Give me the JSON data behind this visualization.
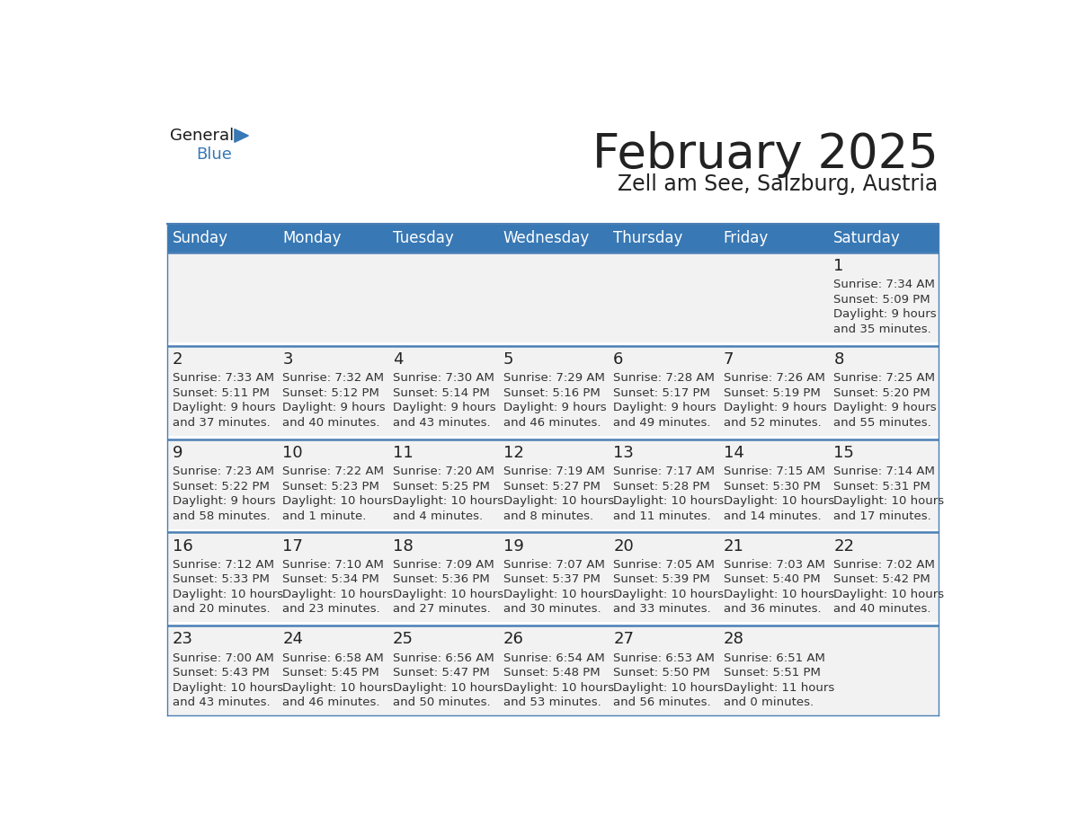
{
  "title": "February 2025",
  "subtitle": "Zell am See, Salzburg, Austria",
  "days_of_week": [
    "Sunday",
    "Monday",
    "Tuesday",
    "Wednesday",
    "Thursday",
    "Friday",
    "Saturday"
  ],
  "header_bg": "#3878b4",
  "header_text": "#ffffff",
  "cell_bg": "#f2f2f2",
  "cell_bg_white": "#ffffff",
  "divider_color": "#4a7fb5",
  "text_color": "#222222",
  "info_text_color": "#333333",
  "background": "#ffffff",
  "calendar_data": [
    [
      null,
      null,
      null,
      null,
      null,
      null,
      {
        "day": 1,
        "sunrise": "7:34 AM",
        "sunset": "5:09 PM",
        "daylight_l1": "Daylight: 9 hours",
        "daylight_l2": "and 35 minutes."
      }
    ],
    [
      {
        "day": 2,
        "sunrise": "7:33 AM",
        "sunset": "5:11 PM",
        "daylight_l1": "Daylight: 9 hours",
        "daylight_l2": "and 37 minutes."
      },
      {
        "day": 3,
        "sunrise": "7:32 AM",
        "sunset": "5:12 PM",
        "daylight_l1": "Daylight: 9 hours",
        "daylight_l2": "and 40 minutes."
      },
      {
        "day": 4,
        "sunrise": "7:30 AM",
        "sunset": "5:14 PM",
        "daylight_l1": "Daylight: 9 hours",
        "daylight_l2": "and 43 minutes."
      },
      {
        "day": 5,
        "sunrise": "7:29 AM",
        "sunset": "5:16 PM",
        "daylight_l1": "Daylight: 9 hours",
        "daylight_l2": "and 46 minutes."
      },
      {
        "day": 6,
        "sunrise": "7:28 AM",
        "sunset": "5:17 PM",
        "daylight_l1": "Daylight: 9 hours",
        "daylight_l2": "and 49 minutes."
      },
      {
        "day": 7,
        "sunrise": "7:26 AM",
        "sunset": "5:19 PM",
        "daylight_l1": "Daylight: 9 hours",
        "daylight_l2": "and 52 minutes."
      },
      {
        "day": 8,
        "sunrise": "7:25 AM",
        "sunset": "5:20 PM",
        "daylight_l1": "Daylight: 9 hours",
        "daylight_l2": "and 55 minutes."
      }
    ],
    [
      {
        "day": 9,
        "sunrise": "7:23 AM",
        "sunset": "5:22 PM",
        "daylight_l1": "Daylight: 9 hours",
        "daylight_l2": "and 58 minutes."
      },
      {
        "day": 10,
        "sunrise": "7:22 AM",
        "sunset": "5:23 PM",
        "daylight_l1": "Daylight: 10 hours",
        "daylight_l2": "and 1 minute."
      },
      {
        "day": 11,
        "sunrise": "7:20 AM",
        "sunset": "5:25 PM",
        "daylight_l1": "Daylight: 10 hours",
        "daylight_l2": "and 4 minutes."
      },
      {
        "day": 12,
        "sunrise": "7:19 AM",
        "sunset": "5:27 PM",
        "daylight_l1": "Daylight: 10 hours",
        "daylight_l2": "and 8 minutes."
      },
      {
        "day": 13,
        "sunrise": "7:17 AM",
        "sunset": "5:28 PM",
        "daylight_l1": "Daylight: 10 hours",
        "daylight_l2": "and 11 minutes."
      },
      {
        "day": 14,
        "sunrise": "7:15 AM",
        "sunset": "5:30 PM",
        "daylight_l1": "Daylight: 10 hours",
        "daylight_l2": "and 14 minutes."
      },
      {
        "day": 15,
        "sunrise": "7:14 AM",
        "sunset": "5:31 PM",
        "daylight_l1": "Daylight: 10 hours",
        "daylight_l2": "and 17 minutes."
      }
    ],
    [
      {
        "day": 16,
        "sunrise": "7:12 AM",
        "sunset": "5:33 PM",
        "daylight_l1": "Daylight: 10 hours",
        "daylight_l2": "and 20 minutes."
      },
      {
        "day": 17,
        "sunrise": "7:10 AM",
        "sunset": "5:34 PM",
        "daylight_l1": "Daylight: 10 hours",
        "daylight_l2": "and 23 minutes."
      },
      {
        "day": 18,
        "sunrise": "7:09 AM",
        "sunset": "5:36 PM",
        "daylight_l1": "Daylight: 10 hours",
        "daylight_l2": "and 27 minutes."
      },
      {
        "day": 19,
        "sunrise": "7:07 AM",
        "sunset": "5:37 PM",
        "daylight_l1": "Daylight: 10 hours",
        "daylight_l2": "and 30 minutes."
      },
      {
        "day": 20,
        "sunrise": "7:05 AM",
        "sunset": "5:39 PM",
        "daylight_l1": "Daylight: 10 hours",
        "daylight_l2": "and 33 minutes."
      },
      {
        "day": 21,
        "sunrise": "7:03 AM",
        "sunset": "5:40 PM",
        "daylight_l1": "Daylight: 10 hours",
        "daylight_l2": "and 36 minutes."
      },
      {
        "day": 22,
        "sunrise": "7:02 AM",
        "sunset": "5:42 PM",
        "daylight_l1": "Daylight: 10 hours",
        "daylight_l2": "and 40 minutes."
      }
    ],
    [
      {
        "day": 23,
        "sunrise": "7:00 AM",
        "sunset": "5:43 PM",
        "daylight_l1": "Daylight: 10 hours",
        "daylight_l2": "and 43 minutes."
      },
      {
        "day": 24,
        "sunrise": "6:58 AM",
        "sunset": "5:45 PM",
        "daylight_l1": "Daylight: 10 hours",
        "daylight_l2": "and 46 minutes."
      },
      {
        "day": 25,
        "sunrise": "6:56 AM",
        "sunset": "5:47 PM",
        "daylight_l1": "Daylight: 10 hours",
        "daylight_l2": "and 50 minutes."
      },
      {
        "day": 26,
        "sunrise": "6:54 AM",
        "sunset": "5:48 PM",
        "daylight_l1": "Daylight: 10 hours",
        "daylight_l2": "and 53 minutes."
      },
      {
        "day": 27,
        "sunrise": "6:53 AM",
        "sunset": "5:50 PM",
        "daylight_l1": "Daylight: 10 hours",
        "daylight_l2": "and 56 minutes."
      },
      {
        "day": 28,
        "sunrise": "6:51 AM",
        "sunset": "5:51 PM",
        "daylight_l1": "Daylight: 11 hours",
        "daylight_l2": "and 0 minutes."
      },
      null
    ]
  ],
  "logo_text_general": "General",
  "logo_text_blue": "Blue",
  "logo_color_general": "#1a1a1a",
  "logo_color_blue": "#3878b4",
  "logo_triangle_color": "#3878b4",
  "title_fontsize": 38,
  "subtitle_fontsize": 17,
  "header_fontsize": 12,
  "day_num_fontsize": 13,
  "info_fontsize": 9.5
}
